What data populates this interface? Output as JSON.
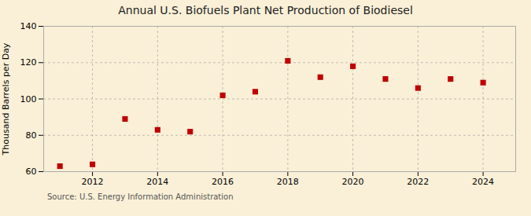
{
  "chart_data": {
    "type": "scatter",
    "title": "Annual U.S. Biofuels Plant Net Production of Biodiesel",
    "ylabel": "Thousand Barrels per Day",
    "annotations": [
      "Source: U.S. Energy Information Administration"
    ],
    "x": [
      2011,
      2012,
      2013,
      2014,
      2015,
      2016,
      2017,
      2018,
      2019,
      2020,
      2021,
      2022,
      2023,
      2024
    ],
    "values": [
      63,
      64,
      89,
      83,
      82,
      102,
      104,
      121,
      112,
      118,
      111,
      106,
      111,
      109
    ],
    "color": "#c00000",
    "marker": "square",
    "xlim": [
      2010.5,
      2025
    ],
    "xticks": [
      2012,
      2014,
      2016,
      2018,
      2020,
      2022,
      2024
    ],
    "ylim": [
      60,
      140
    ],
    "yticks": [
      60,
      80,
      100,
      120,
      140
    ],
    "grid": true
  }
}
